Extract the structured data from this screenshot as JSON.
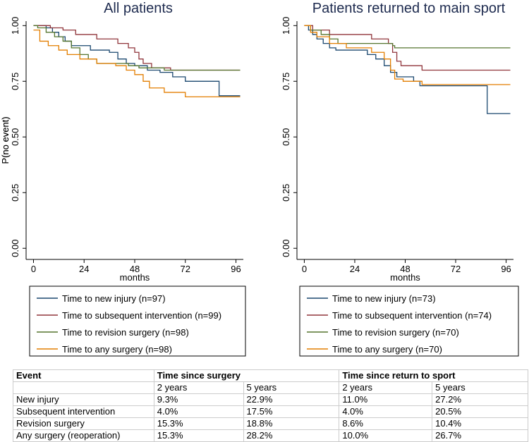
{
  "chart_data": [
    {
      "type": "step",
      "title": "All patients",
      "x_label": "months",
      "y_label": "P(no event)",
      "xlim": [
        -3.5,
        99.5
      ],
      "ylim": [
        -0.05,
        1.02
      ],
      "xticks": [
        0,
        24,
        48,
        72,
        96
      ],
      "yticks": [
        {
          "value": 0,
          "label": "0.00"
        },
        {
          "value": 0.25,
          "label": "0.25"
        },
        {
          "value": 0.5,
          "label": "0.50"
        },
        {
          "value": 0.75,
          "label": "0.75"
        },
        {
          "value": 1,
          "label": "1.00"
        }
      ],
      "series": [
        {
          "name": "Time to new injury (n=97)",
          "color": "#1a476f",
          "x": [
            0,
            6,
            9,
            12,
            15,
            18,
            27,
            36,
            40,
            44,
            48,
            54,
            60,
            66,
            72,
            88,
            98
          ],
          "values": [
            1.0,
            0.99,
            0.97,
            0.95,
            0.93,
            0.91,
            0.89,
            0.88,
            0.85,
            0.83,
            0.82,
            0.8,
            0.79,
            0.77,
            0.75,
            0.685,
            0.685
          ]
        },
        {
          "name": "Time to subsequent intervention (n=99)",
          "color": "#90353b",
          "x": [
            0,
            8,
            14,
            20,
            30,
            40,
            45,
            48,
            50,
            52,
            56,
            65,
            98
          ],
          "values": [
            1.0,
            0.99,
            0.98,
            0.96,
            0.94,
            0.92,
            0.9,
            0.88,
            0.85,
            0.83,
            0.81,
            0.8,
            0.8
          ]
        },
        {
          "name": "Time to revision surgery (n=98)",
          "color": "#55752f",
          "x": [
            0,
            2,
            6,
            10,
            14,
            18,
            22,
            26,
            30,
            45,
            50,
            62,
            98
          ],
          "values": [
            1.0,
            0.99,
            0.97,
            0.95,
            0.93,
            0.9,
            0.87,
            0.85,
            0.83,
            0.82,
            0.81,
            0.8,
            0.8
          ]
        },
        {
          "name": "Time to any surgery (n=98)",
          "color": "#e37e00",
          "x": [
            0,
            3,
            7,
            12,
            16,
            22,
            30,
            39,
            44,
            48,
            52,
            55,
            62,
            72,
            98
          ],
          "values": [
            0.98,
            0.93,
            0.91,
            0.89,
            0.87,
            0.85,
            0.83,
            0.82,
            0.8,
            0.78,
            0.75,
            0.72,
            0.7,
            0.68,
            0.68
          ]
        }
      ]
    },
    {
      "type": "step",
      "title": "Patients returned to main sport",
      "x_label": "months",
      "y_label": "P(no event)",
      "xlim": [
        -3.5,
        99.5
      ],
      "ylim": [
        -0.05,
        1.02
      ],
      "xticks": [
        0,
        24,
        48,
        72,
        96
      ],
      "yticks": [
        {
          "value": 0,
          "label": "0.00"
        },
        {
          "value": 0.25,
          "label": "0.25"
        },
        {
          "value": 0.5,
          "label": "0.50"
        },
        {
          "value": 0.75,
          "label": "0.75"
        },
        {
          "value": 1,
          "label": "1.00"
        }
      ],
      "series": [
        {
          "name": "Time to new injury (n=73)",
          "color": "#1a476f",
          "x": [
            0,
            2,
            4,
            6,
            9,
            12,
            15,
            30,
            34,
            38,
            41,
            44,
            52,
            55,
            87,
            98
          ],
          "values": [
            1.0,
            0.98,
            0.96,
            0.94,
            0.92,
            0.9,
            0.89,
            0.87,
            0.85,
            0.82,
            0.79,
            0.77,
            0.75,
            0.73,
            0.605,
            0.605
          ]
        },
        {
          "name": "Time to subsequent intervention (n=74)",
          "color": "#90353b",
          "x": [
            0,
            4,
            12,
            32,
            40,
            42,
            44,
            46,
            56,
            98
          ],
          "values": [
            1.0,
            0.98,
            0.96,
            0.94,
            0.92,
            0.88,
            0.84,
            0.82,
            0.8,
            0.8
          ]
        },
        {
          "name": "Time to revision surgery (n=70)",
          "color": "#55752f",
          "x": [
            0,
            3,
            8,
            12,
            16,
            42,
            43,
            98
          ],
          "values": [
            1.0,
            0.98,
            0.96,
            0.94,
            0.92,
            0.91,
            0.9,
            0.9
          ]
        },
        {
          "name": "Time to any surgery (n=70)",
          "color": "#e37e00",
          "x": [
            0,
            3,
            6,
            12,
            20,
            32,
            38,
            41,
            43,
            47,
            56,
            98
          ],
          "values": [
            1.0,
            0.97,
            0.95,
            0.92,
            0.9,
            0.88,
            0.85,
            0.8,
            0.76,
            0.75,
            0.735,
            0.735
          ]
        }
      ]
    }
  ],
  "table": {
    "header": [
      "Event",
      "Time since surgery",
      "Time since return to sport"
    ],
    "subheader": [
      "2 years",
      "5 years",
      "2 years",
      "5 years"
    ],
    "rows": [
      [
        "New injury",
        "9.3%",
        "22.9%",
        "11.0%",
        "27.2%"
      ],
      [
        "Subsequent intervention",
        "4.0%",
        "17.5%",
        "4.0%",
        "20.5%"
      ],
      [
        "Revision surgery",
        "15.3%",
        "18.8%",
        "8.6%",
        "10.4%"
      ],
      [
        "Any surgery (reoperation)",
        "15.3%",
        "28.2%",
        "10.0%",
        "26.7%"
      ]
    ]
  }
}
